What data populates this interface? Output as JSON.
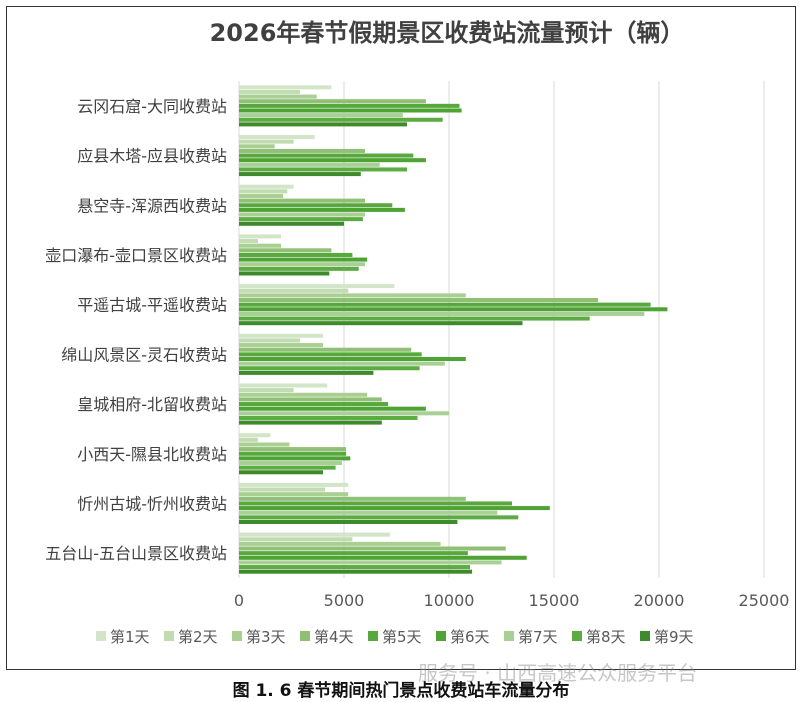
{
  "caption": "图 1. 6 春节期间热门景点收费站车流量分布",
  "watermark": "服务号 · 山西高速公众服务平台",
  "chart_data": {
    "type": "bar",
    "orientation": "horizontal",
    "title": "2026年春节假期景区收费站流量预计（辆）",
    "categories": [
      "云冈石窟-大同收费站",
      "应县木塔-应县收费站",
      "悬空寺-浑源西收费站",
      "壶口瀑布-壶口景区收费站",
      "平遥古城-平遥收费站",
      "绵山风景区-灵石收费站",
      "皇城相府-北留收费站",
      "小西天-隰县北收费站",
      "忻州古城-忻州收费站",
      "五台山-五台山景区收费站"
    ],
    "series": [
      {
        "name": "第1天",
        "color": "#d2e5c8",
        "values": [
          4400,
          3600,
          2600,
          2000,
          7400,
          4000,
          4200,
          1500,
          5200,
          7200
        ]
      },
      {
        "name": "第2天",
        "color": "#c2dcb2",
        "values": [
          2900,
          2600,
          2300,
          900,
          5200,
          2900,
          2600,
          900,
          4100,
          5400
        ]
      },
      {
        "name": "第3天",
        "color": "#a9cf93",
        "values": [
          3700,
          1700,
          2100,
          2000,
          10800,
          4000,
          6100,
          2400,
          5200,
          9600
        ]
      },
      {
        "name": "第4天",
        "color": "#8fc075",
        "values": [
          8900,
          6000,
          6000,
          4400,
          17100,
          8200,
          6800,
          5100,
          10800,
          12700
        ]
      },
      {
        "name": "第5天",
        "color": "#58a83e",
        "values": [
          10500,
          8300,
          7300,
          5400,
          19600,
          8700,
          7100,
          5100,
          13000,
          10900
        ]
      },
      {
        "name": "第6天",
        "color": "#4ea334",
        "values": [
          10600,
          8900,
          7900,
          6100,
          20400,
          10800,
          8900,
          5300,
          14800,
          13700
        ]
      },
      {
        "name": "第7天",
        "color": "#a8cf95",
        "values": [
          7800,
          6700,
          6000,
          6000,
          19300,
          9800,
          10000,
          4900,
          12300,
          12500
        ]
      },
      {
        "name": "第8天",
        "color": "#5dab43",
        "values": [
          9700,
          8000,
          5900,
          5700,
          16700,
          8600,
          8500,
          4600,
          13300,
          11000
        ]
      },
      {
        "name": "第9天",
        "color": "#3f8a2c",
        "values": [
          8000,
          5800,
          5000,
          4300,
          13500,
          6400,
          6800,
          4000,
          10400,
          11100
        ]
      }
    ],
    "xlim": [
      0,
      25000
    ],
    "xticks": [
      "0",
      "5000",
      "10000",
      "15000",
      "20000",
      "25000"
    ],
    "grid": "vertical",
    "legend_position": "bottom"
  }
}
